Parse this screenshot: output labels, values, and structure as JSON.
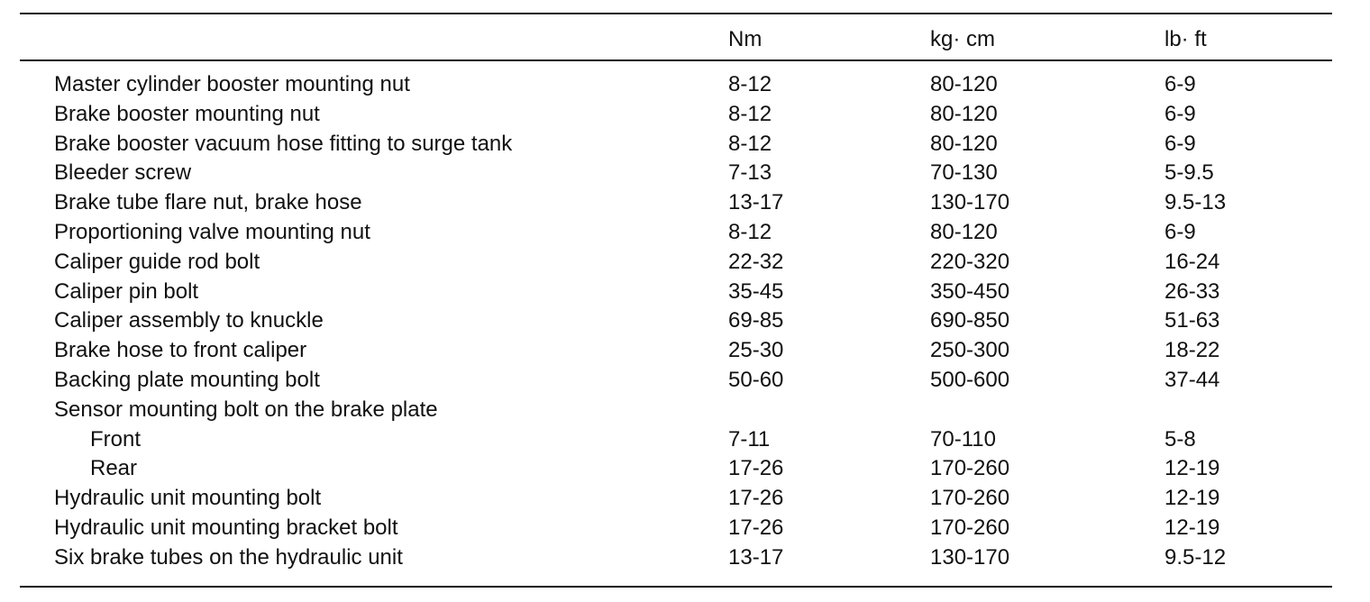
{
  "table": {
    "columns": [
      "Nm",
      "kg· cm",
      "lb· ft"
    ],
    "rows": [
      [
        "Master cylinder booster mounting nut",
        "8-12",
        "80-120",
        "6-9"
      ],
      [
        "Brake booster mounting nut",
        "8-12",
        "80-120",
        "6-9"
      ],
      [
        "Brake booster vacuum hose fitting to surge tank",
        "8-12",
        "80-120",
        "6-9"
      ],
      [
        "Bleeder screw",
        "7-13",
        "70-130",
        "5-9.5"
      ],
      [
        "Brake tube flare nut, brake hose",
        "13-17",
        "130-170",
        "9.5-13"
      ],
      [
        "Proportioning valve mounting nut",
        "8-12",
        "80-120",
        "6-9"
      ],
      [
        "Caliper guide rod bolt",
        "22-32",
        "220-320",
        "16-24"
      ],
      [
        "Caliper pin bolt",
        "35-45",
        "350-450",
        "26-33"
      ],
      [
        "Caliper assembly to knuckle",
        "69-85",
        "690-850",
        "51-63"
      ],
      [
        "Brake hose to front caliper",
        "25-30",
        "250-300",
        "18-22"
      ],
      [
        "Backing plate mounting bolt",
        "50-60",
        "500-600",
        "37-44"
      ],
      {
        "group": "Sensor mounting bolt on the brake plate",
        "rows": [
          [
            "Front",
            "7-11",
            "70-110",
            "5-8"
          ],
          [
            "Rear",
            "17-26",
            "170-260",
            "12-19"
          ]
        ]
      },
      [
        "Hydraulic unit mounting bolt",
        "17-26",
        "170-260",
        "12-19"
      ],
      [
        "Hydraulic unit mounting bracket bolt",
        "17-26",
        "170-260",
        "12-19"
      ],
      [
        "Six brake tubes on the hydraulic unit",
        "13-17",
        "130-170",
        "9.5-12"
      ]
    ]
  }
}
